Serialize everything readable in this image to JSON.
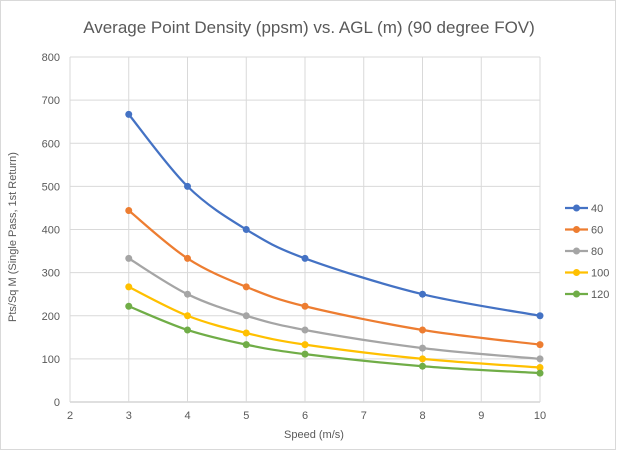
{
  "chart_data": {
    "type": "line",
    "title": "Average Point Density (ppsm) vs. AGL (m) (90 degree FOV)",
    "xlabel": "Speed (m/s)",
    "ylabel": "Pts/Sq M (Single Pass, 1st Return)",
    "xlim": [
      2,
      10
    ],
    "ylim": [
      0,
      800
    ],
    "xticks": [
      2,
      3,
      4,
      5,
      6,
      7,
      8,
      9,
      10
    ],
    "yticks": [
      0,
      100,
      200,
      300,
      400,
      500,
      600,
      700,
      800
    ],
    "grid": true,
    "smooth": true,
    "legend_position": "right",
    "x": [
      3,
      4,
      5,
      6,
      8,
      10
    ],
    "series": [
      {
        "name": "40",
        "color": "#4472c4",
        "values": [
          667,
          500,
          400,
          333,
          250,
          200
        ]
      },
      {
        "name": "60",
        "color": "#ed7d31",
        "values": [
          444,
          333,
          267,
          222,
          167,
          133
        ]
      },
      {
        "name": "80",
        "color": "#a5a5a5",
        "values": [
          333,
          250,
          200,
          167,
          125,
          100
        ]
      },
      {
        "name": "100",
        "color": "#ffc000",
        "values": [
          267,
          200,
          160,
          133,
          100,
          80
        ]
      },
      {
        "name": "120",
        "color": "#70ad47",
        "values": [
          222,
          167,
          133,
          111,
          83,
          67
        ]
      }
    ]
  }
}
